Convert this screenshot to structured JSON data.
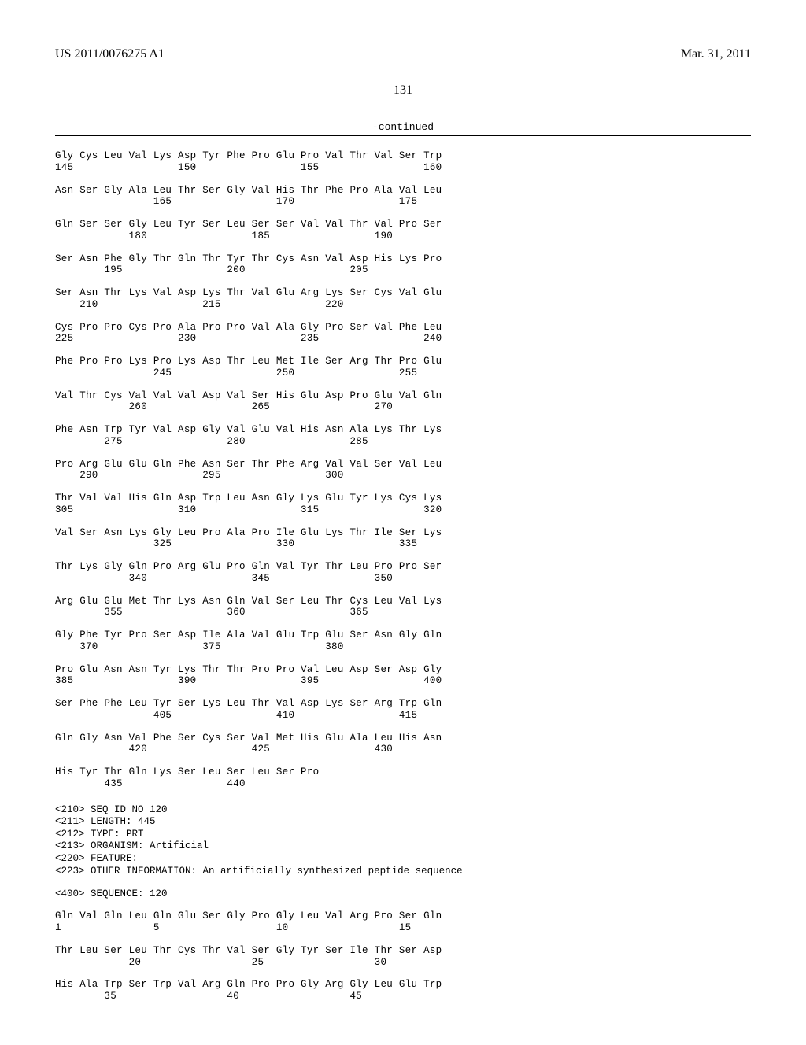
{
  "header": {
    "pub_number": "US 2011/0076275 A1",
    "pub_date": "Mar. 31, 2011"
  },
  "page_number": "131",
  "continued_label": "-continued",
  "sequence119": {
    "rows": [
      {
        "aa": "Gly Cys Leu Val Lys Asp Tyr Phe Pro Glu Pro Val Thr Val Ser Trp",
        "nums": "145                 150                 155                 160"
      },
      {
        "aa": "Asn Ser Gly Ala Leu Thr Ser Gly Val His Thr Phe Pro Ala Val Leu",
        "nums": "                165                 170                 175"
      },
      {
        "aa": "Gln Ser Ser Gly Leu Tyr Ser Leu Ser Ser Val Val Thr Val Pro Ser",
        "nums": "            180                 185                 190"
      },
      {
        "aa": "Ser Asn Phe Gly Thr Gln Thr Tyr Thr Cys Asn Val Asp His Lys Pro",
        "nums": "        195                 200                 205"
      },
      {
        "aa": "Ser Asn Thr Lys Val Asp Lys Thr Val Glu Arg Lys Ser Cys Val Glu",
        "nums": "    210                 215                 220"
      },
      {
        "aa": "Cys Pro Pro Cys Pro Ala Pro Pro Val Ala Gly Pro Ser Val Phe Leu",
        "nums": "225                 230                 235                 240"
      },
      {
        "aa": "Phe Pro Pro Lys Pro Lys Asp Thr Leu Met Ile Ser Arg Thr Pro Glu",
        "nums": "                245                 250                 255"
      },
      {
        "aa": "Val Thr Cys Val Val Val Asp Val Ser His Glu Asp Pro Glu Val Gln",
        "nums": "            260                 265                 270"
      },
      {
        "aa": "Phe Asn Trp Tyr Val Asp Gly Val Glu Val His Asn Ala Lys Thr Lys",
        "nums": "        275                 280                 285"
      },
      {
        "aa": "Pro Arg Glu Glu Gln Phe Asn Ser Thr Phe Arg Val Val Ser Val Leu",
        "nums": "    290                 295                 300"
      },
      {
        "aa": "Thr Val Val His Gln Asp Trp Leu Asn Gly Lys Glu Tyr Lys Cys Lys",
        "nums": "305                 310                 315                 320"
      },
      {
        "aa": "Val Ser Asn Lys Gly Leu Pro Ala Pro Ile Glu Lys Thr Ile Ser Lys",
        "nums": "                325                 330                 335"
      },
      {
        "aa": "Thr Lys Gly Gln Pro Arg Glu Pro Gln Val Tyr Thr Leu Pro Pro Ser",
        "nums": "            340                 345                 350"
      },
      {
        "aa": "Arg Glu Glu Met Thr Lys Asn Gln Val Ser Leu Thr Cys Leu Val Lys",
        "nums": "        355                 360                 365"
      },
      {
        "aa": "Gly Phe Tyr Pro Ser Asp Ile Ala Val Glu Trp Glu Ser Asn Gly Gln",
        "nums": "    370                 375                 380"
      },
      {
        "aa": "Pro Glu Asn Asn Tyr Lys Thr Thr Pro Pro Val Leu Asp Ser Asp Gly",
        "nums": "385                 390                 395                 400"
      },
      {
        "aa": "Ser Phe Phe Leu Tyr Ser Lys Leu Thr Val Asp Lys Ser Arg Trp Gln",
        "nums": "                405                 410                 415"
      },
      {
        "aa": "Gln Gly Asn Val Phe Ser Cys Ser Val Met His Glu Ala Leu His Asn",
        "nums": "            420                 425                 430"
      },
      {
        "aa": "His Tyr Thr Gln Lys Ser Leu Ser Leu Ser Pro",
        "nums": "        435                 440"
      }
    ]
  },
  "meta120": {
    "lines": [
      "<210> SEQ ID NO 120",
      "<211> LENGTH: 445",
      "<212> TYPE: PRT",
      "<213> ORGANISM: Artificial",
      "<220> FEATURE:",
      "<223> OTHER INFORMATION: An artificially synthesized peptide sequence"
    ],
    "seq_label": "<400> SEQUENCE: 120"
  },
  "sequence120": {
    "rows": [
      {
        "aa": "Gln Val Gln Leu Gln Glu Ser Gly Pro Gly Leu Val Arg Pro Ser Gln",
        "nums": "1               5                   10                  15"
      },
      {
        "aa": "Thr Leu Ser Leu Thr Cys Thr Val Ser Gly Tyr Ser Ile Thr Ser Asp",
        "nums": "            20                  25                  30"
      },
      {
        "aa": "His Ala Trp Ser Trp Val Arg Gln Pro Pro Gly Arg Gly Leu Glu Trp",
        "nums": "        35                  40                  45"
      }
    ]
  }
}
